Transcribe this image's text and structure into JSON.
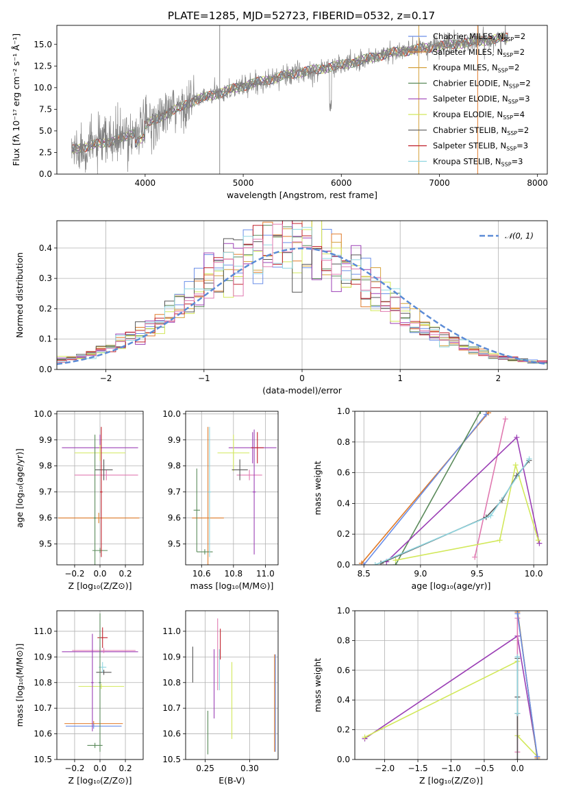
{
  "figure": {
    "title": "PLATE=1285, MJD=52723, FIBERID=0532, z=0.17"
  },
  "chart_data": [
    {
      "id": "spectrum",
      "type": "line",
      "title": "PLATE=1285, MJD=52723, FIBERID=0532, z=0.17",
      "xlabel": "wavelength [Angstrom, rest frame]",
      "ylabel": "Flux [fλ 10⁻¹⁷ erg cm⁻² s⁻¹ Å⁻¹]",
      "xlim": [
        3100,
        8100
      ],
      "ylim": [
        0,
        17.2
      ],
      "xticks": [
        4000,
        5000,
        6000,
        7000,
        8000
      ],
      "yticks": [
        0.0,
        2.5,
        5.0,
        7.5,
        10.0,
        12.5,
        15.0
      ],
      "ytick_labels": [
        "0.0",
        "2.5",
        "5.0",
        "7.5",
        "10.0",
        "12.5",
        "15.0"
      ],
      "grid": false,
      "legend_position": "right",
      "observed": {
        "x_range": [
          3250,
          7700
        ],
        "continuum": [
          [
            3250,
            2.8
          ],
          [
            3800,
            4.2
          ],
          [
            4100,
            6.3
          ],
          [
            4500,
            8.5
          ],
          [
            5000,
            10.2
          ],
          [
            5500,
            11.6
          ],
          [
            6000,
            12.6
          ],
          [
            6500,
            14.0
          ],
          [
            7000,
            14.8
          ],
          [
            7700,
            15.8
          ]
        ]
      },
      "series": [
        {
          "name": "Chabrier MILES, N_SSP=2",
          "label": "Chabrier MILES, N",
          "sub": "SSP",
          "suffix": "=2",
          "color": "#6a8ee8"
        },
        {
          "name": "Salpeter MILES, N_SSP=2",
          "label": "Salpeter MILES, N",
          "sub": "SSP",
          "suffix": "=2",
          "color": "#e07a28"
        },
        {
          "name": "Kroupa MILES, N_SSP=2",
          "label": "Kroupa MILES, N",
          "sub": "SSP",
          "suffix": "=2",
          "color": "#d4a03a"
        },
        {
          "name": "Chabrier ELODIE, N_SSP=2",
          "label": "Chabrier ELODIE, N",
          "sub": "SSP",
          "suffix": "=2",
          "color": "#5a8a5a"
        },
        {
          "name": "Salpeter ELODIE, N_SSP=3",
          "label": "Salpeter ELODIE, N",
          "sub": "SSP",
          "suffix": "=3",
          "color": "#9b3fb5"
        },
        {
          "name": "Kroupa ELODIE, N_SSP=4",
          "label": "Kroupa ELODIE, N",
          "sub": "SSP",
          "suffix": "=4",
          "color": "#d2e85a"
        },
        {
          "name": "Chabrier STELIB, N_SSP=2",
          "label": "Chabrier STELIB, N",
          "sub": "SSP",
          "suffix": "=2",
          "color": "#555555"
        },
        {
          "name": "Salpeter STELIB, N_SSP=3",
          "label": "Salpeter STELIB, N",
          "sub": "SSP",
          "suffix": "=3",
          "color": "#c0202a"
        },
        {
          "name": "Kroupa STELIB, N_SSP=3",
          "label": "Kroupa STELIB, N",
          "sub": "SSP",
          "suffix": "=3",
          "color": "#8fd6e0"
        }
      ],
      "vlines": [
        {
          "x": 4760,
          "color": "#888888"
        },
        {
          "x": 6790,
          "color": "#d4a03a"
        },
        {
          "x": 7390,
          "color": "#e07a28"
        }
      ]
    },
    {
      "id": "residuals",
      "type": "histogram",
      "xlabel": "(data-model)/error",
      "ylabel": "Normed distribution",
      "xlim": [
        -2.5,
        2.5
      ],
      "ylim": [
        0,
        0.49
      ],
      "xticks": [
        -2,
        -1,
        0,
        1,
        2
      ],
      "xtick_labels": [
        "−2",
        "−1",
        "0",
        "1",
        "2"
      ],
      "yticks": [
        0.0,
        0.1,
        0.2,
        0.3,
        0.4
      ],
      "ytick_labels": [
        "0.0",
        "0.1",
        "0.2",
        "0.3",
        "0.4"
      ],
      "grid": true,
      "legend_position": "top-right",
      "gaussian": {
        "label": "𝒩(0, 1)",
        "mean": 0,
        "sigma": 1,
        "color": "#5b8bd6"
      },
      "bin_width": 0.1
    },
    {
      "id": "age_vs_Z",
      "type": "errorbar",
      "xlabel": "Z [log₁₀(Z/Z⊙)]",
      "ylabel": "age  [log₁₀(age/yr)]",
      "xlim": [
        -0.34,
        0.34
      ],
      "ylim": [
        9.42,
        10.01
      ],
      "xticks": [
        -0.2,
        0.0,
        0.2
      ],
      "xtick_labels": [
        "−0.2",
        "0.0",
        "0.2"
      ],
      "yticks": [
        9.5,
        9.6,
        9.7,
        9.8,
        9.9,
        10.0
      ],
      "ytick_labels": [
        "9.5",
        "9.6",
        "9.7",
        "9.8",
        "9.9",
        "10.0"
      ],
      "grid": true,
      "points": [
        {
          "x": -0.01,
          "y": 9.6,
          "xerr": 0.32,
          "yerr": 0.02,
          "color": "#e07a28"
        },
        {
          "x": 0.0,
          "y": 9.475,
          "xerr": 0.06,
          "yerr": 0.01,
          "color": "#5a8a5a"
        },
        {
          "x": 0.0,
          "y": 9.87,
          "xerr": 0.3,
          "yerr": 0.05,
          "color": "#9b3fb5"
        },
        {
          "x": 0.0,
          "y": 9.85,
          "xerr": 0.2,
          "yerr": 0.03,
          "color": "#d2e85a"
        },
        {
          "x": 0.05,
          "y": 9.765,
          "xerr": 0.25,
          "yerr": 0.02,
          "color": "#e079b0"
        },
        {
          "x": 0.03,
          "y": 9.785,
          "xerr": 0.07,
          "yerr": 0.04,
          "color": "#555555"
        },
        {
          "x": -0.04,
          "y": 9.6,
          "xerr": 0.01,
          "yerr": 0.32,
          "color": "#5a8a5a"
        },
        {
          "x": 0.01,
          "y": 9.7,
          "xerr": 0.01,
          "yerr": 0.25,
          "color": "#c0202a"
        }
      ]
    },
    {
      "id": "age_vs_mass",
      "type": "errorbar",
      "xlabel": "mass [log₁₀(M/M⊙)]",
      "ylabel": "",
      "xlim": [
        10.5,
        11.08
      ],
      "ylim": [
        9.42,
        10.01
      ],
      "xticks": [
        10.6,
        10.8,
        11.0
      ],
      "xtick_labels": [
        "10.6",
        "10.8",
        "11.0"
      ],
      "yticks": [
        9.5,
        9.6,
        9.7,
        9.8,
        9.9,
        10.0
      ],
      "ytick_labels": [
        "9.5",
        "9.6",
        "9.7",
        "9.8",
        "9.9",
        "10.0"
      ],
      "grid": true,
      "points": [
        {
          "x": 10.64,
          "y": 9.6,
          "xerr": 0.1,
          "yerr": 0.35,
          "color": "#e07a28"
        },
        {
          "x": 10.57,
          "y": 9.63,
          "xerr": 0.02,
          "yerr": 0.16,
          "color": "#5a8a5a"
        },
        {
          "x": 10.62,
          "y": 9.47,
          "xerr": 0.05,
          "yerr": 0.01,
          "color": "#5a8a5a"
        },
        {
          "x": 10.65,
          "y": 9.7,
          "xerr": 0.01,
          "yerr": 0.25,
          "color": "#8fd6e0"
        },
        {
          "x": 10.92,
          "y": 9.87,
          "xerr": 0.15,
          "yerr": 0.06,
          "color": "#9b3fb5"
        },
        {
          "x": 10.8,
          "y": 9.85,
          "xerr": 0.1,
          "yerr": 0.07,
          "color": "#d2e85a"
        },
        {
          "x": 10.9,
          "y": 9.765,
          "xerr": 0.08,
          "yerr": 0.02,
          "color": "#e079b0"
        },
        {
          "x": 10.84,
          "y": 9.785,
          "xerr": 0.05,
          "yerr": 0.04,
          "color": "#555555"
        },
        {
          "x": 10.95,
          "y": 9.87,
          "xerr": 0.04,
          "yerr": 0.06,
          "color": "#c0202a"
        },
        {
          "x": 10.93,
          "y": 9.7,
          "xerr": 0.01,
          "yerr": 0.24,
          "color": "#9b3fb5"
        }
      ]
    },
    {
      "id": "massweight_vs_age",
      "type": "line",
      "xlabel": "age  [log₁₀(age/yr)]",
      "ylabel": "mass weight",
      "xlim": [
        8.42,
        10.12
      ],
      "ylim": [
        0,
        1
      ],
      "xticks": [
        8.5,
        9.0,
        9.5,
        10.0
      ],
      "xtick_labels": [
        "8.5",
        "9.0",
        "9.5",
        "10.0"
      ],
      "yticks": [
        0.0,
        0.2,
        0.4,
        0.6,
        0.8,
        1.0
      ],
      "ytick_labels": [
        "0.0",
        "0.2",
        "0.4",
        "0.6",
        "0.8",
        "1.0"
      ],
      "grid": true,
      "series": [
        {
          "color": "#e07a28",
          "points": [
            [
              8.48,
              0.01
            ],
            [
              9.6,
              0.99
            ]
          ]
        },
        {
          "color": "#6a8ee8",
          "points": [
            [
              8.5,
              0.0
            ],
            [
              9.58,
              0.98
            ]
          ]
        },
        {
          "color": "#5a8a5a",
          "points": [
            [
              8.78,
              0.0
            ],
            [
              9.53,
              1.0
            ]
          ]
        },
        {
          "color": "#e079b0",
          "points": [
            [
              9.48,
              0.05
            ],
            [
              9.75,
              0.95
            ]
          ]
        },
        {
          "color": "#9b3fb5",
          "points": [
            [
              8.7,
              0.02
            ],
            [
              9.85,
              0.83
            ],
            [
              10.05,
              0.14
            ]
          ]
        },
        {
          "color": "#d2e85a",
          "points": [
            [
              8.78,
              0.03
            ],
            [
              9.7,
              0.16
            ],
            [
              9.84,
              0.65
            ],
            [
              10.04,
              0.16
            ]
          ]
        },
        {
          "color": "#555555",
          "points": [
            [
              8.65,
              0.01
            ],
            [
              9.58,
              0.31
            ],
            [
              9.72,
              0.42
            ],
            [
              9.85,
              0.58
            ],
            [
              9.96,
              0.68
            ]
          ]
        },
        {
          "color": "#8fd6e0",
          "points": [
            [
              8.6,
              0.0
            ],
            [
              9.62,
              0.32
            ],
            [
              9.96,
              0.69
            ]
          ]
        }
      ]
    },
    {
      "id": "mass_vs_Z",
      "type": "errorbar",
      "xlabel": "Z [log₁₀(Z/Z⊙)]",
      "ylabel": "mass [log₁₀(M/M⊙)]",
      "xlim": [
        -0.34,
        0.34
      ],
      "ylim": [
        10.5,
        11.08
      ],
      "xticks": [
        -0.2,
        0.0,
        0.2
      ],
      "xtick_labels": [
        "−0.2",
        "0.0",
        "0.2"
      ],
      "yticks": [
        10.5,
        10.6,
        10.7,
        10.8,
        10.9,
        11.0
      ],
      "ytick_labels": [
        "10.5",
        "10.6",
        "10.7",
        "10.8",
        "10.9",
        "11.0"
      ],
      "grid": true,
      "points": [
        {
          "x": -0.05,
          "y": 10.64,
          "xerr": 0.23,
          "yerr": 0.01,
          "color": "#e07a28"
        },
        {
          "x": -0.05,
          "y": 10.63,
          "xerr": 0.22,
          "yerr": 0.01,
          "color": "#6a8ee8"
        },
        {
          "x": -0.04,
          "y": 10.555,
          "xerr": 0.06,
          "yerr": 0.01,
          "color": "#5a8a5a"
        },
        {
          "x": 0.0,
          "y": 10.92,
          "xerr": 0.3,
          "yerr": 0.02,
          "color": "#9b3fb5"
        },
        {
          "x": 0.03,
          "y": 10.925,
          "xerr": 0.25,
          "yerr": 0.01,
          "color": "#e079b0"
        },
        {
          "x": 0.01,
          "y": 10.785,
          "xerr": 0.18,
          "yerr": 0.01,
          "color": "#d2e85a"
        },
        {
          "x": 0.03,
          "y": 10.84,
          "xerr": 0.06,
          "yerr": 0.01,
          "color": "#555555"
        },
        {
          "x": 0.02,
          "y": 10.86,
          "xerr": 0.03,
          "yerr": 0.02,
          "color": "#8fd6e0"
        },
        {
          "x": 0.02,
          "y": 10.975,
          "xerr": 0.04,
          "yerr": 0.04,
          "color": "#c0202a"
        },
        {
          "x": -0.06,
          "y": 10.8,
          "xerr": 0.01,
          "yerr": 0.19,
          "color": "#9b3fb5"
        },
        {
          "x": 0.0,
          "y": 10.8,
          "xerr": 0.01,
          "yerr": 0.27,
          "color": "#5a8a5a"
        }
      ]
    },
    {
      "id": "mass_vs_EBV",
      "type": "errorbar",
      "xlabel": "E(B-V)",
      "ylabel": "",
      "xlim": [
        0.228,
        0.332
      ],
      "ylim": [
        10.5,
        11.08
      ],
      "xticks": [
        0.25,
        0.3
      ],
      "xtick_labels": [
        "0.25",
        "0.30"
      ],
      "yticks": [
        10.5,
        10.6,
        10.7,
        10.8,
        10.9,
        11.0
      ],
      "ytick_labels": [
        "10.5",
        "10.6",
        "10.7",
        "10.8",
        "10.9",
        "11.0"
      ],
      "grid": true,
      "points": [
        {
          "x": 0.236,
          "y": 10.87,
          "xerr": 0,
          "yerr": 0.07,
          "color": "#555555"
        },
        {
          "x": 0.253,
          "y": 10.605,
          "xerr": 0,
          "yerr": 0.085,
          "color": "#5a8a5a"
        },
        {
          "x": 0.26,
          "y": 10.795,
          "xerr": 0,
          "yerr": 0.135,
          "color": "#9b3fb5"
        },
        {
          "x": 0.264,
          "y": 10.91,
          "xerr": 0,
          "yerr": 0.14,
          "color": "#e079b0"
        },
        {
          "x": 0.266,
          "y": 10.85,
          "xerr": 0,
          "yerr": 0.08,
          "color": "#8fd6e0"
        },
        {
          "x": 0.267,
          "y": 10.95,
          "xerr": 0,
          "yerr": 0.06,
          "color": "#c0202a"
        },
        {
          "x": 0.28,
          "y": 10.73,
          "xerr": 0,
          "yerr": 0.15,
          "color": "#d2e85a"
        },
        {
          "x": 0.328,
          "y": 10.72,
          "xerr": 0,
          "yerr": 0.19,
          "color": "#e07a28"
        },
        {
          "x": 0.329,
          "y": 10.72,
          "xerr": 0,
          "yerr": 0.19,
          "color": "#6a8ee8"
        }
      ]
    },
    {
      "id": "massweight_vs_Z",
      "type": "line",
      "xlabel": "Z [log₁₀(Z/Z⊙)]",
      "ylabel": "mass weight",
      "xlim": [
        -2.45,
        0.45
      ],
      "ylim": [
        0,
        1
      ],
      "xticks": [
        -2.0,
        -1.5,
        -1.0,
        -0.5,
        0.0
      ],
      "xtick_labels": [
        "−2.0",
        "−1.5",
        "−1.0",
        "−0.5",
        "0.0"
      ],
      "yticks": [
        0.0,
        0.2,
        0.4,
        0.6,
        0.8,
        1.0
      ],
      "ytick_labels": [
        "0.0",
        "0.2",
        "0.4",
        "0.6",
        "0.8",
        "1.0"
      ],
      "grid": true,
      "series": [
        {
          "color": "#9b3fb5",
          "points": [
            [
              -2.3,
              0.14
            ],
            [
              0.0,
              0.83
            ],
            [
              0.3,
              0.02
            ]
          ]
        },
        {
          "color": "#d2e85a",
          "points": [
            [
              -2.3,
              0.15
            ],
            [
              0.0,
              0.66
            ],
            [
              0.0,
              0.16
            ],
            [
              0.3,
              0.02
            ]
          ]
        },
        {
          "color": "#5a8a5a",
          "points": [
            [
              0.0,
              1.0
            ],
            [
              0.3,
              0.0
            ]
          ]
        },
        {
          "color": "#e07a28",
          "points": [
            [
              0.0,
              0.99
            ],
            [
              0.3,
              0.01
            ]
          ]
        },
        {
          "color": "#e079b0",
          "points": [
            [
              0.0,
              0.95
            ],
            [
              0.0,
              0.05
            ]
          ]
        },
        {
          "color": "#555555",
          "points": [
            [
              0.0,
              0.68
            ],
            [
              0.0,
              0.42
            ],
            [
              0.0,
              0.31
            ],
            [
              0.0,
              0.0
            ]
          ]
        },
        {
          "color": "#8fd6e0",
          "points": [
            [
              0.0,
              0.69
            ],
            [
              0.0,
              0.31
            ]
          ]
        },
        {
          "color": "#6a8ee8",
          "points": [
            [
              0.0,
              0.98
            ],
            [
              0.3,
              0.02
            ]
          ]
        }
      ]
    }
  ]
}
